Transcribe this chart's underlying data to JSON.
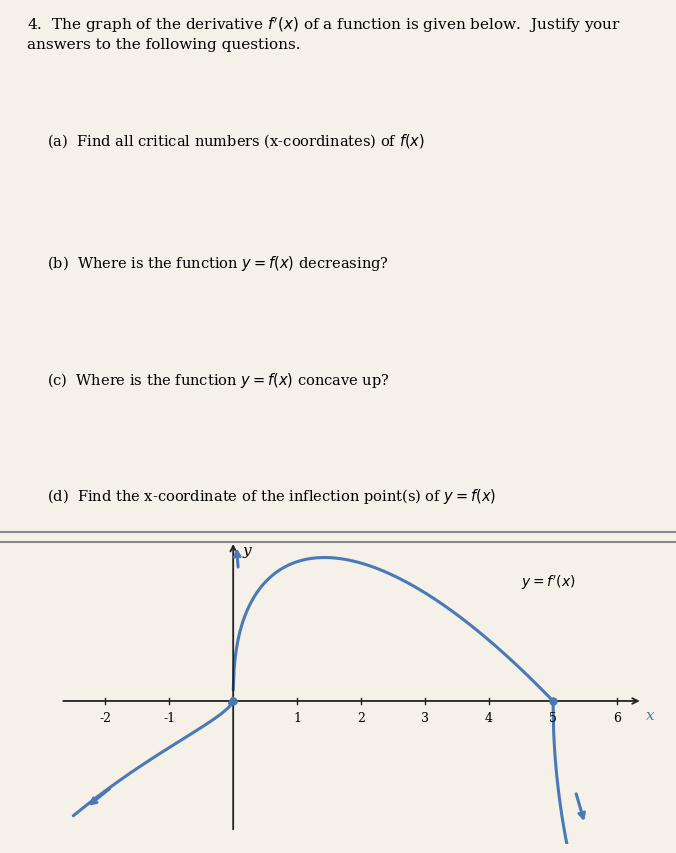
{
  "title_text": "4.  The graph of the derivative $f'(x)$ of a function is given below.  Justify your\nanswers to the following questions.",
  "questions": [
    "(a)  Find all critical numbers (x-coordinates) of $f(x)$",
    "(b)  Where is the function $y = f(x)$ decreasing?",
    "(c)  Where is the function $y = f(x)$ concave up?",
    "(d)  Find the x-coordinate of the inflection point(s) of $y = f(x)$"
  ],
  "curve_color": "#4a7ab5",
  "axis_color": "#222222",
  "background_color": "#f5f0e8",
  "graph_bg": "#f5f0e8",
  "xlim": [
    -2.8,
    6.5
  ],
  "ylim": [
    -3.5,
    4.0
  ],
  "xticks": [
    -2,
    -1,
    1,
    2,
    3,
    4,
    5,
    6
  ],
  "yticks": [],
  "xlabel": "x",
  "ylabel": "y",
  "label_fprime": "$y= f'(x)$",
  "zeros": [
    0,
    5
  ],
  "line_width": 2.2
}
